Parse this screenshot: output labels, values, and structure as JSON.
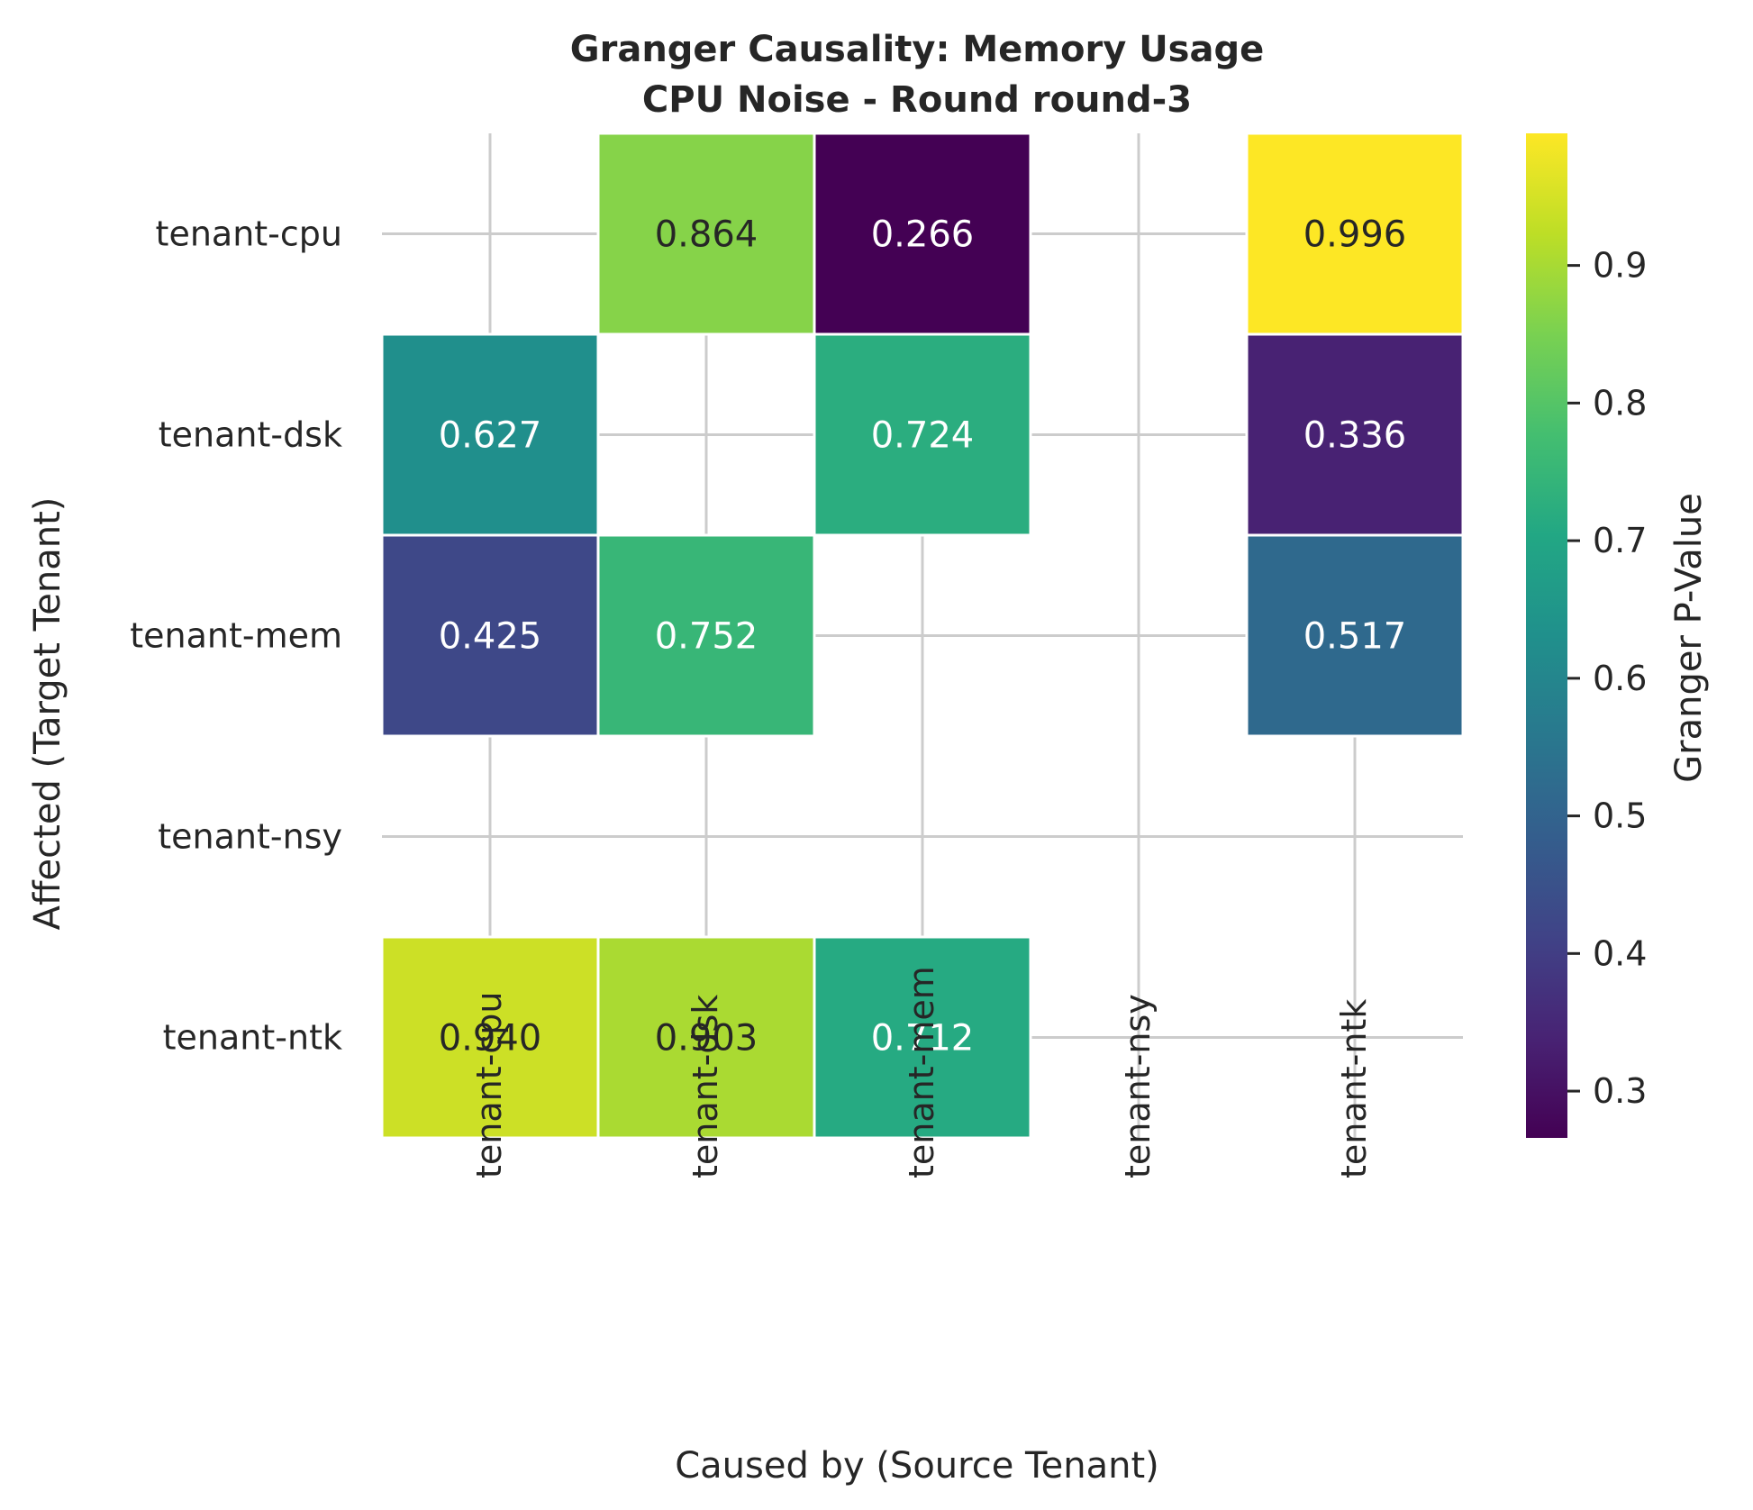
{
  "chart_data": {
    "type": "heatmap",
    "title_lines": [
      "Granger Causality: Memory Usage",
      "CPU Noise - Round round-3"
    ],
    "xlabel": "Caused by (Source Tenant)",
    "ylabel": "Affected (Target Tenant)",
    "x_categories": [
      "tenant-cpu",
      "tenant-dsk",
      "tenant-mem",
      "tenant-nsy",
      "tenant-ntk"
    ],
    "y_categories": [
      "tenant-cpu",
      "tenant-dsk",
      "tenant-mem",
      "tenant-nsy",
      "tenant-ntk"
    ],
    "values": [
      [
        null,
        0.864,
        0.266,
        null,
        0.996
      ],
      [
        0.627,
        null,
        0.724,
        null,
        0.336
      ],
      [
        0.425,
        0.752,
        null,
        null,
        0.517
      ],
      [
        null,
        null,
        null,
        null,
        null
      ],
      [
        0.94,
        0.903,
        0.712,
        null,
        null
      ]
    ],
    "labels": [
      [
        "",
        "0.864",
        "0.266",
        "",
        "0.996"
      ],
      [
        "0.627",
        "",
        "0.724",
        "",
        "0.336"
      ],
      [
        "0.425",
        "0.752",
        "",
        "",
        "0.517"
      ],
      [
        "",
        "",
        "",
        "",
        ""
      ],
      [
        "0.940",
        "0.903",
        "0.712",
        "",
        ""
      ]
    ],
    "colormap": "viridis",
    "colorbar": {
      "label": "Granger P-Value",
      "range": [
        0.266,
        0.996
      ],
      "ticks": [
        0.3,
        0.4,
        0.5,
        0.6,
        0.7,
        0.8,
        0.9
      ],
      "tick_labels": [
        "0.3",
        "0.4",
        "0.5",
        "0.6",
        "0.7",
        "0.8",
        "0.9"
      ]
    },
    "grid": true,
    "grid_color": "#cccccc"
  }
}
